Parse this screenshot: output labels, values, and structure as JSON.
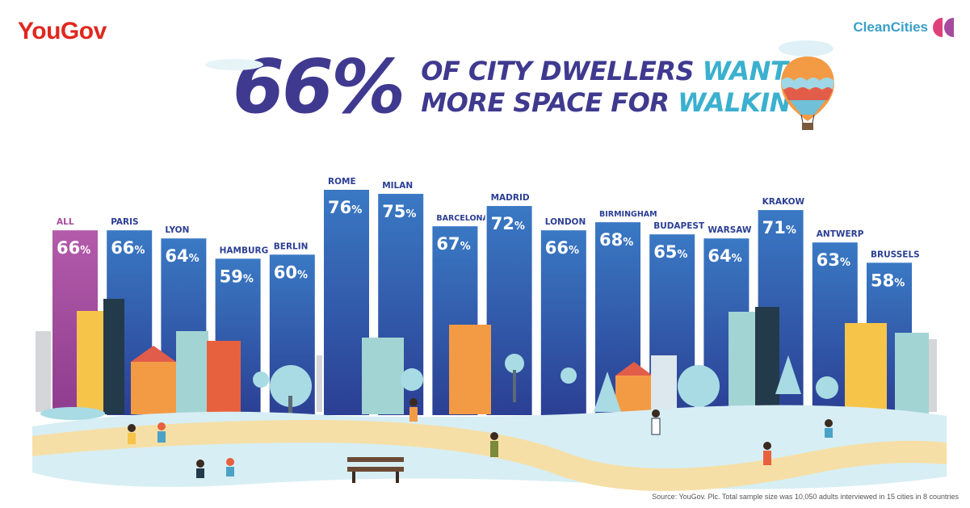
{
  "logos": {
    "yougov": "YouGov",
    "cleancities": "CleanCities"
  },
  "headline": {
    "big_number": "66%",
    "line1_dark": "OF CITY DWELLERS ",
    "line1_accent": "WANT",
    "line2_dark": "MORE SPACE FOR ",
    "line2_accent": "WALKING"
  },
  "source": "Source: YouGov. Plc. Total sample size was 10,050 adults interviewed in 15 cities in 8 countries",
  "colors": {
    "bar": "#2f6db6",
    "bar_highlight": "#a64a9e",
    "brand_red": "#e0271f",
    "headline_dark": "#3f3a8f",
    "headline_accent": "#3bb0cf",
    "path": "#f6dfa6",
    "ground": "#d7eef4"
  },
  "chart_data": {
    "type": "bar",
    "categories": [
      "ALL",
      "PARIS",
      "LYON",
      "HAMBURG",
      "BERLIN",
      "ROME",
      "MILAN",
      "BARCELONA",
      "MADRID",
      "LONDON",
      "BIRMINGHAM",
      "BUDAPEST",
      "WARSAW",
      "KRAKOW",
      "ANTWERP",
      "BRUSSELS"
    ],
    "values": [
      66,
      66,
      64,
      59,
      60,
      76,
      75,
      67,
      72,
      66,
      68,
      65,
      64,
      71,
      63,
      58
    ],
    "value_labels": [
      "66",
      "66",
      "64",
      "59",
      "60",
      "76",
      "75",
      "67",
      "72",
      "66",
      "68",
      "65",
      "64",
      "71",
      "63",
      "58"
    ],
    "unit": "%",
    "highlight_index": 0
  }
}
